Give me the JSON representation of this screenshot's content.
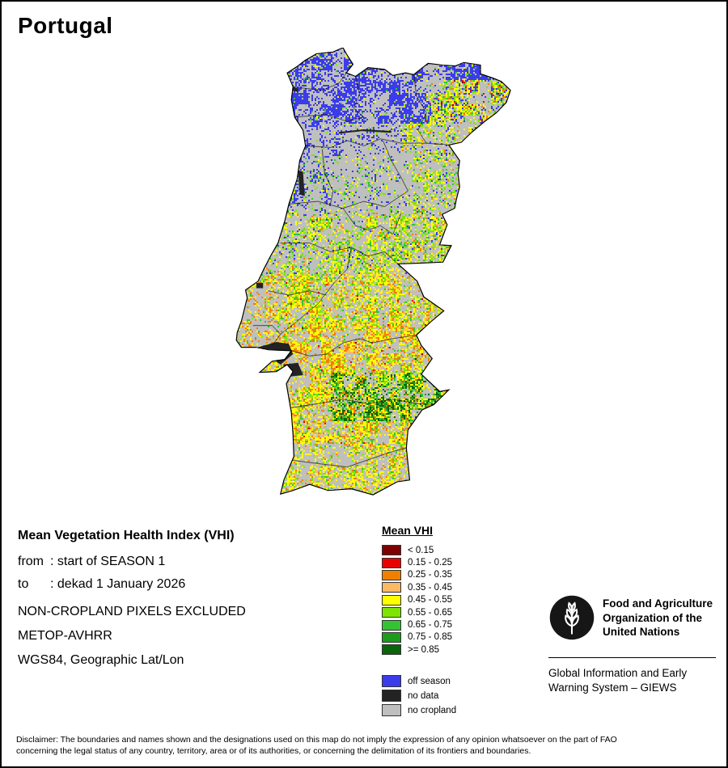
{
  "title": "Portugal",
  "meta": {
    "heading": "Mean Vegetation Health Index (VHI)",
    "from_label": "from",
    "from_value": ": start of SEASON 1",
    "to_label": "to",
    "to_value": ": dekad 1 January 2026",
    "exclusion": "NON-CROPLAND PIXELS EXCLUDED",
    "sensor": "METOP-AVHRR",
    "projection": "WGS84, Geographic Lat/Lon"
  },
  "legend": {
    "title": "Mean VHI",
    "classes": [
      {
        "label": "< 0.15",
        "color": "#7E0000"
      },
      {
        "label": "0.15 - 0.25",
        "color": "#E90000"
      },
      {
        "label": "0.25 - 0.35",
        "color": "#F08000"
      },
      {
        "label": "0.35 - 0.45",
        "color": "#F9BA63"
      },
      {
        "label": "0.45 - 0.55",
        "color": "#FFFF00"
      },
      {
        "label": "0.55 - 0.65",
        "color": "#7EE400"
      },
      {
        "label": "0.65 - 0.75",
        "color": "#33C433"
      },
      {
        "label": "0.75 - 0.85",
        "color": "#1D9B1D"
      },
      {
        "label": ">= 0.85",
        "color": "#0B630B"
      }
    ],
    "extra": [
      {
        "label": "off season",
        "color": "#3B3BEC"
      },
      {
        "label": "no data",
        "color": "#232323"
      },
      {
        "label": "no cropland",
        "color": "#BFBFBF"
      }
    ]
  },
  "fao": {
    "org_lines": [
      "Food and Agriculture",
      "Organization of the",
      "United Nations"
    ],
    "giews_lines": [
      "Global Information and Early",
      "Warning System – GIEWS"
    ]
  },
  "footer": {
    "disclaimer_lines": [
      "Disclaimer: The boundaries and names shown and the designations used on this map do not imply the expression of any opinion whatsoever on the part of FAO",
      "concerning the legal status of any country, territory, area or of its authorities, or concerning the delimitation of its frontiers and boundaries."
    ]
  }
}
